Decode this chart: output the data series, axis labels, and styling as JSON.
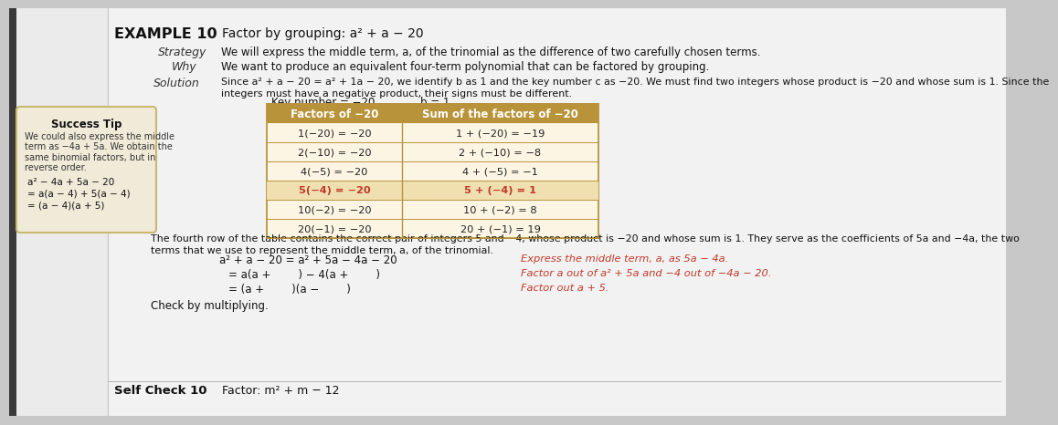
{
  "bg_outer": "#c8c8c8",
  "bg_left_strip": "#5a5a5a",
  "bg_page": "#f0f0f0",
  "bg_white_main": "#f8f8f8",
  "title_label": "EXAMPLE 10",
  "title_text": "Factor by grouping: a² + a − 20",
  "strategy_label": "Strategy",
  "strategy_text": "We will express the middle term, a, of the trinomial as the difference of two carefully chosen terms.",
  "why_label": "Why",
  "why_text": "We want to produce an equivalent four-term polynomial that can be factored by grouping.",
  "solution_label": "Solution",
  "solution_text1": "Since a² + a − 20 = a² + 1a − 20, we identify b as 1 and the key number c as −20. We must find two integers whose product is −20 and whose sum is 1. Since the",
  "solution_text2": "integers must have a negative product, their signs must be different.",
  "key_number": "Key number = −20",
  "b_val": "b = 1",
  "table_header1": "Factors of −20",
  "table_header2": "Sum of the factors of −20",
  "table_rows": [
    [
      "1(−20) = −20",
      "1 + (−20) = −19"
    ],
    [
      "2(−10) = −20",
      "2 + (−10) = −8"
    ],
    [
      "4(−5) = −20",
      "4 + (−5) = −1"
    ],
    [
      "5(−4) = −20",
      "5 + (−4) = 1"
    ],
    [
      "10(−2) = −20",
      "10 + (−2) = 8"
    ],
    [
      "20(−1) = −20",
      "20 + (−1) = 19"
    ]
  ],
  "highlighted_row": 3,
  "table_bg": "#fdf5e4",
  "table_header_bg": "#b8933a",
  "table_highlight_bg": "#f0e0b0",
  "table_border_color": "#b8933a",
  "success_tip_bg": "#f0ead8",
  "success_tip_border": "#c8b870",
  "success_tip_title": "Success Tip",
  "success_tip_lines": [
    "We could also express the middle",
    "term as −4a + 5a. We obtain the",
    "same binomial factors, but in",
    "reverse order."
  ],
  "success_tip_math1": "a² − 4a + 5a − 20",
  "success_tip_math2": "= a(a − 4) + 5(a − 4)",
  "success_tip_math3": "= (a − 4)(a + 5)",
  "success_math1_red1": "−4a",
  "success_math1_red2": "5a",
  "fourth_row_text1": "The fourth row of the table contains the correct pair of integers 5 and −4, whose product is −20 and whose sum is 1. They serve as the coefficients of 5a and −4a, the two",
  "fourth_row_text2": "terms that we use to represent the middle term, a, of the trinomial.",
  "eq1_left": "a² + a − 20 = a² + 5a − 4a − 20",
  "eq1_right": "Express the middle term, a, as 5a − 4a.",
  "eq2_left": "= a(a +        ) − 4(a +        )",
  "eq2_right": "Factor a out of a² + 5a and −4 out of −4a − 20.",
  "eq3_left": "= (a +        )(a −        )",
  "eq3_right": "Factor out a + 5.",
  "check_text": "Check by multiplying.",
  "self_check_label": "Self Check 10",
  "self_check_text": "Factor: m² + m − 12",
  "highlight_red": "#c0392b",
  "dark_text": "#222222",
  "label_color": "#555555",
  "italic_red": "#c0392b"
}
